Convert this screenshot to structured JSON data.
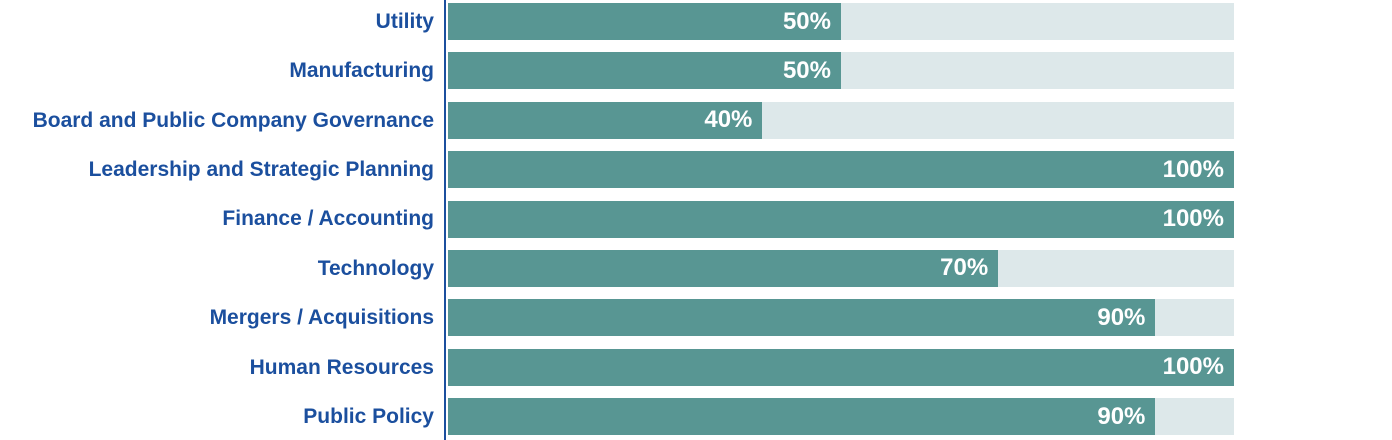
{
  "chart_data": {
    "type": "bar",
    "orientation": "horizontal",
    "title": "",
    "xlabel": "",
    "ylabel": "",
    "xlim": [
      0,
      100
    ],
    "grid": false,
    "legend": "none",
    "categories": [
      "Utility",
      "Manufacturing",
      "Board and Public Company Governance",
      "Leadership and Strategic Planning",
      "Finance / Accounting",
      "Technology",
      "Mergers / Acquisitions",
      "Human Resources",
      "Public Policy"
    ],
    "values": [
      50,
      50,
      40,
      100,
      100,
      70,
      90,
      100,
      90
    ],
    "value_labels": [
      "50%",
      "50%",
      "40%",
      "100%",
      "100%",
      "70%",
      "90%",
      "100%",
      "90%"
    ],
    "colors": {
      "bar": "#589693",
      "track": "#dde8ea",
      "category_label": "#1b4f9e",
      "axis_line": "#1b4f9e",
      "value_label": "#ffffff"
    }
  }
}
